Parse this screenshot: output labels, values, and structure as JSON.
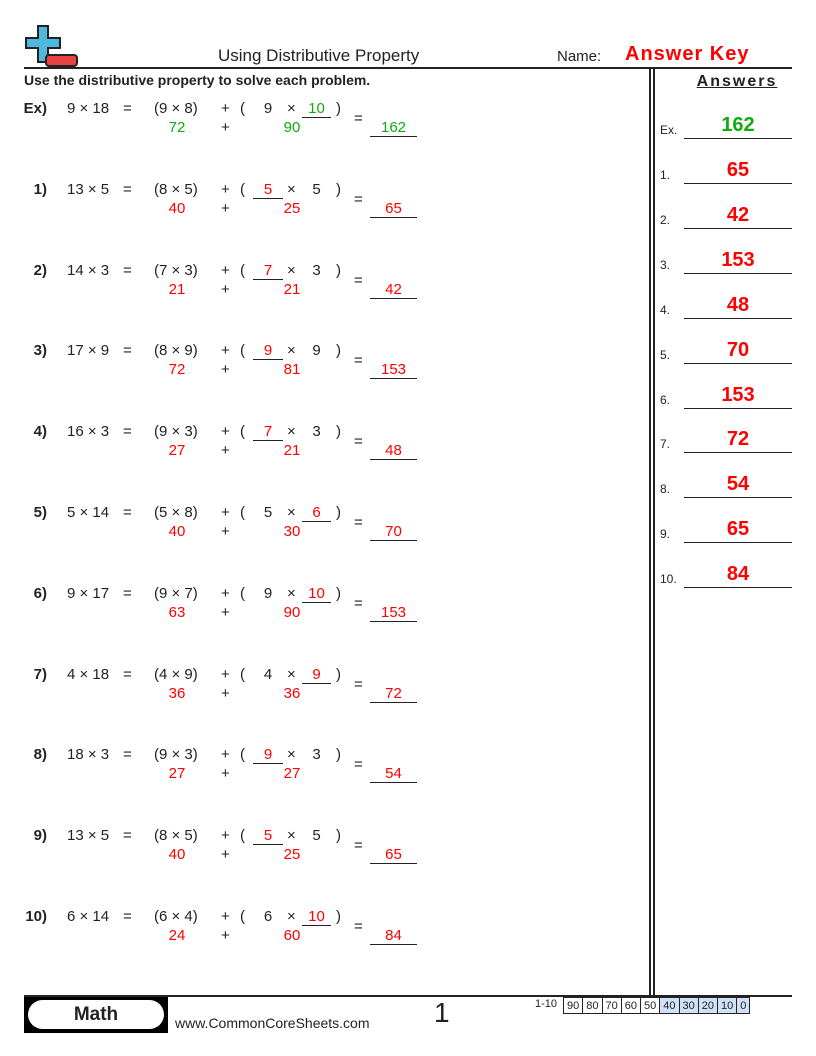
{
  "header": {
    "title": "Using Distributive Property",
    "name_label": "Name:",
    "name_value": "Answer Key",
    "instructions": "Use the distributive property to solve each problem."
  },
  "answers_header": "Answers",
  "colors": {
    "answer": "#ff0000",
    "example": "#11aa11",
    "logo_blue": "#4fb8dd",
    "logo_red": "#e84343",
    "score_highlight": "#cfe0f7"
  },
  "problems": [
    {
      "label": "Ex)",
      "expr": "9 × 18",
      "p1": "(9 × 8)",
      "a": "9",
      "b": "10",
      "blank": "b",
      "r1": "72",
      "r2": "90",
      "ans": "162",
      "example": true
    },
    {
      "label": "1)",
      "expr": "13 × 5",
      "p1": "(8 × 5)",
      "a": "5",
      "b": "5",
      "blank": "a",
      "r1": "40",
      "r2": "25",
      "ans": "65"
    },
    {
      "label": "2)",
      "expr": "14 × 3",
      "p1": "(7 × 3)",
      "a": "7",
      "b": "3",
      "blank": "a",
      "r1": "21",
      "r2": "21",
      "ans": "42"
    },
    {
      "label": "3)",
      "expr": "17 × 9",
      "p1": "(8 × 9)",
      "a": "9",
      "b": "9",
      "blank": "a",
      "r1": "72",
      "r2": "81",
      "ans": "153"
    },
    {
      "label": "4)",
      "expr": "16 × 3",
      "p1": "(9 × 3)",
      "a": "7",
      "b": "3",
      "blank": "a",
      "r1": "27",
      "r2": "21",
      "ans": "48"
    },
    {
      "label": "5)",
      "expr": "5 × 14",
      "p1": "(5 × 8)",
      "a": "5",
      "b": "6",
      "blank": "b",
      "r1": "40",
      "r2": "30",
      "ans": "70"
    },
    {
      "label": "6)",
      "expr": "9 × 17",
      "p1": "(9 × 7)",
      "a": "9",
      "b": "10",
      "blank": "b",
      "r1": "63",
      "r2": "90",
      "ans": "153"
    },
    {
      "label": "7)",
      "expr": "4 × 18",
      "p1": "(4 × 9)",
      "a": "4",
      "b": "9",
      "blank": "b",
      "r1": "36",
      "r2": "36",
      "ans": "72"
    },
    {
      "label": "8)",
      "expr": "18 × 3",
      "p1": "(9 × 3)",
      "a": "9",
      "b": "3",
      "blank": "a",
      "r1": "27",
      "r2": "27",
      "ans": "54"
    },
    {
      "label": "9)",
      "expr": "13 × 5",
      "p1": "(8 × 5)",
      "a": "5",
      "b": "5",
      "blank": "a",
      "r1": "40",
      "r2": "25",
      "ans": "65"
    },
    {
      "label": "10)",
      "expr": "6 × 14",
      "p1": "(6 × 4)",
      "a": "6",
      "b": "10",
      "blank": "b",
      "r1": "24",
      "r2": "60",
      "ans": "84"
    }
  ],
  "symbols": {
    "eq": "=",
    "plus": "+",
    "times": "×",
    "lparen": "(",
    "rparen": ")"
  },
  "answers": [
    {
      "label": "Ex.",
      "value": "162"
    },
    {
      "label": "1.",
      "value": "65"
    },
    {
      "label": "2.",
      "value": "42"
    },
    {
      "label": "3.",
      "value": "153"
    },
    {
      "label": "4.",
      "value": "48"
    },
    {
      "label": "5.",
      "value": "70"
    },
    {
      "label": "6.",
      "value": "153"
    },
    {
      "label": "7.",
      "value": "72"
    },
    {
      "label": "8.",
      "value": "54"
    },
    {
      "label": "9.",
      "value": "65"
    },
    {
      "label": "10.",
      "value": "84"
    }
  ],
  "footer": {
    "subject": "Math",
    "website": "www.CommonCoreSheets.com",
    "page": "1",
    "score_label": "1-10",
    "scores": [
      "90",
      "80",
      "70",
      "60",
      "50",
      "40",
      "30",
      "20",
      "10",
      "0"
    ],
    "highlight_from": 5
  }
}
